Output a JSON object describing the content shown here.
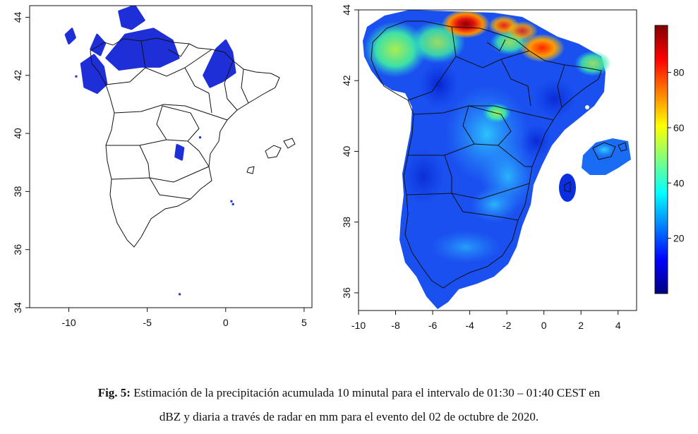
{
  "left_map": {
    "x_ticks": [
      "-10",
      "-5",
      "0",
      "5"
    ],
    "y_ticks": [
      "34",
      "36",
      "38",
      "40",
      "42",
      "44"
    ],
    "xlim": [
      -12.5,
      5.5
    ],
    "ylim": [
      34,
      44.4
    ],
    "unit": "dBZ",
    "echo_color": "#1f2fd8"
  },
  "right_map": {
    "x_ticks": [
      "-10",
      "-8",
      "-6",
      "-4",
      "-2",
      "0",
      "2",
      "4"
    ],
    "y_ticks": [
      "36",
      "38",
      "40",
      "42",
      "44"
    ],
    "xlim": [
      -10,
      5
    ],
    "ylim": [
      35.5,
      44
    ],
    "unit": "mm"
  },
  "colorbar": {
    "ticks": [
      "20",
      "40",
      "60",
      "80"
    ],
    "range": [
      0,
      97
    ],
    "colors": [
      "#00007f",
      "#0000ff",
      "#007fff",
      "#00ffff",
      "#7fff7f",
      "#ffff00",
      "#ff7f00",
      "#ff0000",
      "#7f0000"
    ]
  },
  "caption": {
    "prefix": "Fig. 5:",
    "line1": "Estimación de la precipitación acumulada 10 minutal para el intervalo de 01:30 – 01:40 CEST en",
    "line2": "dBZ y diaria a través de radar en mm para el evento del 02 de octubre de 2020."
  }
}
